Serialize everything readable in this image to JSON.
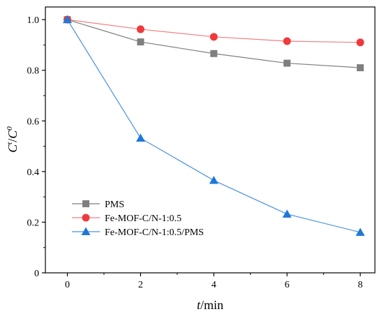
{
  "chart_data": {
    "type": "line",
    "x": [
      0,
      2,
      4,
      6,
      8
    ],
    "xlabel_italic": "t",
    "xlabel_rest": "/min",
    "ylabel_base1": "C",
    "ylabel_sup1": "t",
    "ylabel_sep": "/",
    "ylabel_base2": "C",
    "ylabel_sup2": "0",
    "xlim": [
      -0.6,
      8.4
    ],
    "ylim": [
      0,
      1.05
    ],
    "xticks": [
      0,
      2,
      4,
      6,
      8
    ],
    "yticks": [
      0,
      0.2,
      0.4,
      0.6,
      0.8,
      1.0
    ],
    "ytick_labels": [
      "0",
      "0.2",
      "0.4",
      "0.6",
      "0.8",
      "1.0"
    ],
    "xtick_labels": [
      "0",
      "2",
      "4",
      "6",
      "8"
    ],
    "grid": false,
    "legend_position": "lower-left",
    "series": [
      {
        "name": "PMS",
        "marker": "square",
        "color": "#7f7f7f",
        "line_color": "#7f7f7f",
        "values": [
          1.0,
          0.912,
          0.866,
          0.828,
          0.81
        ]
      },
      {
        "name": "Fe-MOF-C/N-1:0.5",
        "marker": "circle",
        "color": "#f0393b",
        "line_color": "#f08080",
        "values": [
          1.0,
          0.962,
          0.932,
          0.915,
          0.91
        ]
      },
      {
        "name": "Fe-MOF-C/N-1:0.5/PMS",
        "marker": "triangle",
        "color": "#1e78d8",
        "line_color": "#4a90e2",
        "values": [
          1.0,
          0.532,
          0.365,
          0.232,
          0.16
        ]
      }
    ]
  }
}
